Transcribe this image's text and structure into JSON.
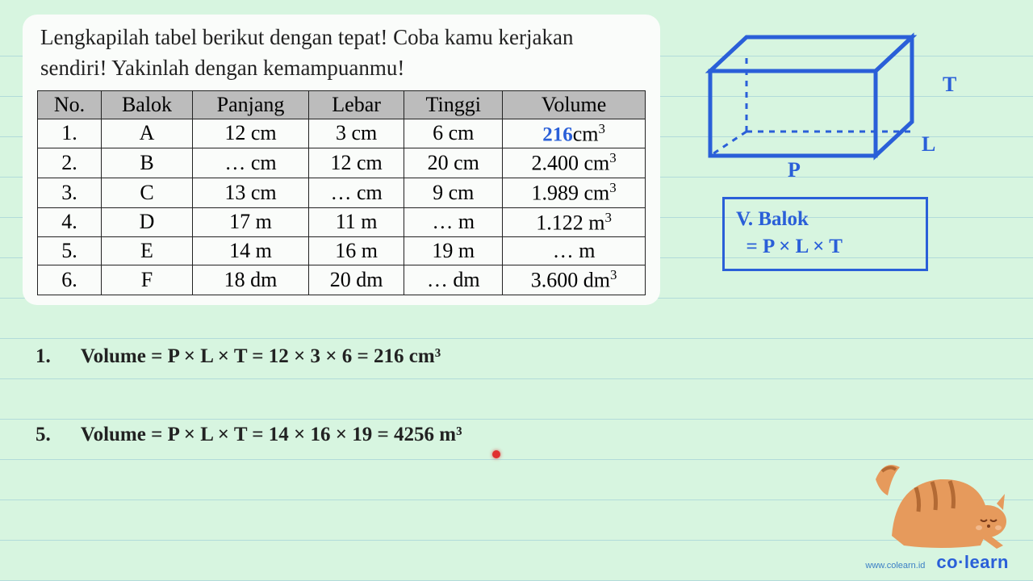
{
  "instruction": "Lengkapilah tabel berikut dengan tepat! Coba kamu kerjakan sendiri! Yakinlah dengan kemampuanmu!",
  "table": {
    "headers": [
      "No.",
      "Balok",
      "Panjang",
      "Lebar",
      "Tinggi",
      "Volume"
    ],
    "header_bg": "#bcbcbc",
    "border_color": "#222222",
    "rows": [
      {
        "no": "1.",
        "balok": "A",
        "p": "12 cm",
        "l": "3 cm",
        "t": "6 cm",
        "v_prefix": "",
        "v_answer": "216",
        "v_suffix": "cm",
        "v_exp": "3"
      },
      {
        "no": "2.",
        "balok": "B",
        "p": "… cm",
        "l": "12 cm",
        "t": "20 cm",
        "v_prefix": "2.400 cm",
        "v_answer": "",
        "v_suffix": "",
        "v_exp": "3"
      },
      {
        "no": "3.",
        "balok": "C",
        "p": "13 cm",
        "l": "… cm",
        "t": "9 cm",
        "v_prefix": "1.989 cm",
        "v_answer": "",
        "v_suffix": "",
        "v_exp": "3"
      },
      {
        "no": "4.",
        "balok": "D",
        "p": "17 m",
        "l": "11 m",
        "t": "… m",
        "v_prefix": "1.122 m",
        "v_answer": "",
        "v_suffix": "",
        "v_exp": "3"
      },
      {
        "no": "5.",
        "balok": "E",
        "p": "14 m",
        "l": "16 m",
        "t": "19 m",
        "v_prefix": "… m",
        "v_answer": "",
        "v_suffix": "",
        "v_exp": ""
      },
      {
        "no": "6.",
        "balok": "F",
        "p": "18 dm",
        "l": "20 dm",
        "t": "… dm",
        "v_prefix": "3.600 dm",
        "v_answer": "",
        "v_suffix": "",
        "v_exp": "3"
      }
    ]
  },
  "diagram": {
    "stroke": "#2a5fd8",
    "stroke_width": 4,
    "dash": "6,6",
    "labels": {
      "P": "P",
      "L": "L",
      "T": "T"
    }
  },
  "formula": {
    "line1": "V. Balok",
    "line2": "  = P × L × T",
    "border_color": "#2a5fd8",
    "text_color": "#2a5fd8"
  },
  "work": {
    "line1": {
      "num": "1.",
      "text": "Volume = P × L × T = 12 × 3 × 6 = 216 cm³"
    },
    "line5": {
      "num": "5.",
      "text": "Volume = P × L × T = 14 × 16 × 19 = 4256 m³"
    }
  },
  "cursor_color": "#e03030",
  "footer": {
    "url": "www.colearn.id",
    "brand": "co·learn"
  },
  "colors": {
    "page_bg": "#d7f5e0",
    "card_bg": "#fafcfa",
    "blue": "#2a5fd8",
    "cat_body": "#e69a5c",
    "cat_stripes": "#b36a34"
  }
}
